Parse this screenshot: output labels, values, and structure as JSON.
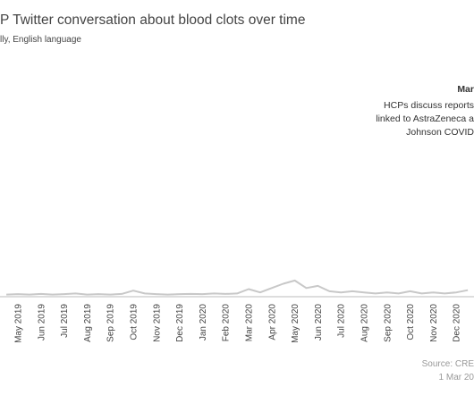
{
  "chart_data": {
    "type": "line",
    "title": "P Twitter conversation about blood clots over time",
    "subtitle": "lly, English language",
    "annotation": {
      "title": "Mar",
      "lines": [
        "HCPs discuss reports",
        "linked to AstraZeneca a",
        "Johnson COVID"
      ]
    },
    "source": [
      "Source: CRE",
      "1 Mar 20"
    ],
    "categories": [
      null,
      "May 2019",
      null,
      "Jun 2019",
      null,
      "Jul 2019",
      null,
      "Aug 2019",
      null,
      "Sep 2019",
      null,
      "Oct 2019",
      null,
      "Nov 2019",
      null,
      "Dec 2019",
      null,
      "Jan 2020",
      null,
      "Feb 2020",
      null,
      "Mar 2020",
      null,
      "Apr 2020",
      null,
      "May 2020",
      null,
      "Jun 2020",
      null,
      "Jul 2020",
      null,
      "Aug 2020",
      null,
      "Sep 2020",
      null,
      "Oct 2020",
      null,
      "Nov 2020",
      null,
      "Dec 2020",
      null
    ],
    "series": [
      {
        "color": "#c8c8c8",
        "values": [
          1,
          1.2,
          1,
          1.3,
          1,
          1.2,
          1.5,
          1,
          1.2,
          1,
          1.3,
          2.8,
          1.5,
          1.2,
          1,
          1.2,
          1.3,
          1.2,
          1.5,
          1.3,
          1.5,
          3.5,
          2,
          4,
          6,
          7.5,
          4,
          5,
          2.5,
          2,
          2.5,
          2,
          1.5,
          2,
          1.5,
          2.5,
          1.5,
          2,
          1.5,
          2,
          3
        ]
      }
    ],
    "ylim": [
      0,
      100
    ]
  }
}
